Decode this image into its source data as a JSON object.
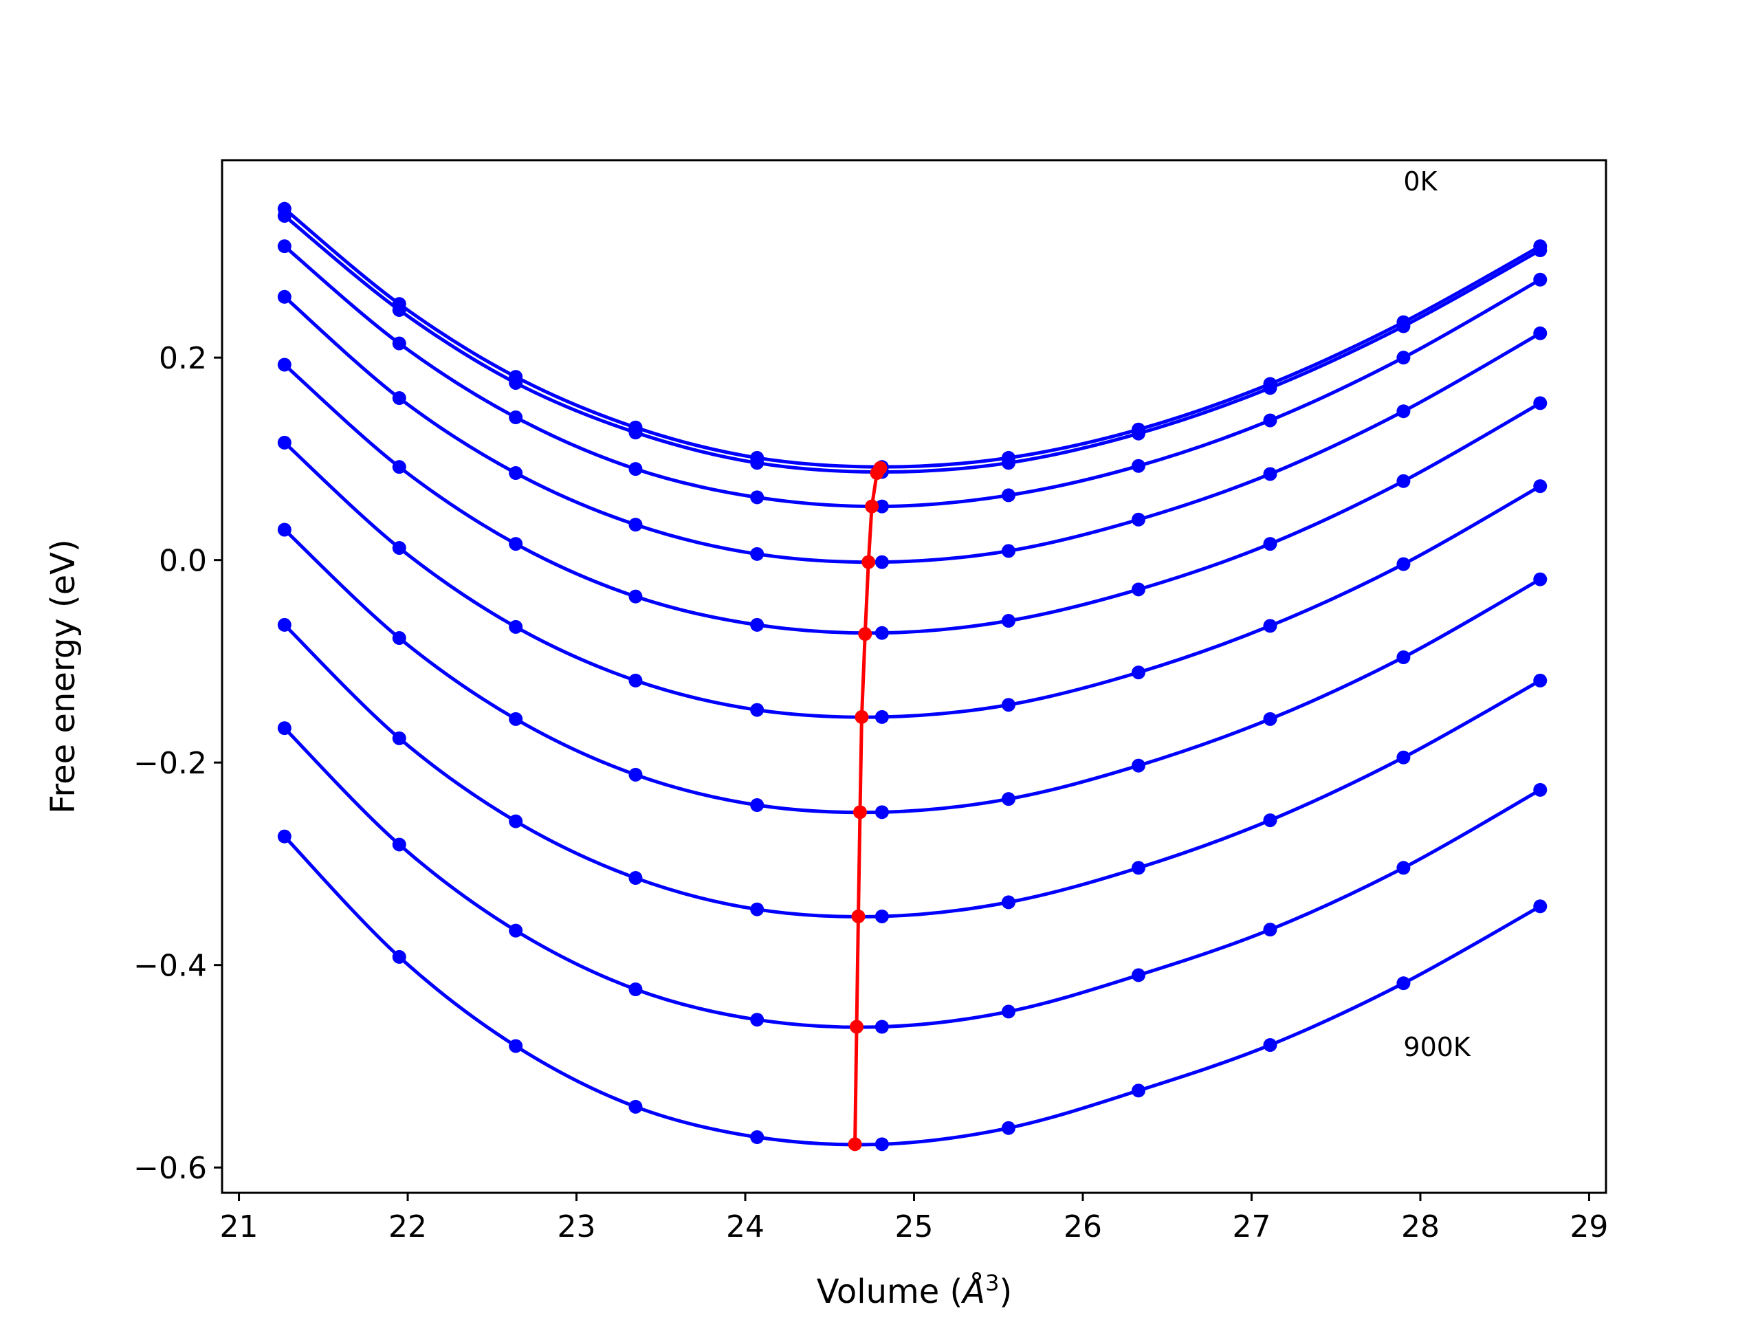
{
  "chart_data": {
    "type": "line",
    "title": "",
    "xlabel": "Volume (",
    "xlabel_symbol": "Å",
    "xlabel_exp": "3",
    "xlabel_close": ")",
    "ylabel": "Free energy (eV)",
    "xlim": [
      20.9,
      29.1
    ],
    "ylim": [
      -0.625,
      0.395
    ],
    "xticks": [
      21,
      22,
      23,
      24,
      25,
      26,
      27,
      28,
      29
    ],
    "xtick_labels": [
      "21",
      "22",
      "23",
      "24",
      "25",
      "26",
      "27",
      "28",
      "29"
    ],
    "yticks": [
      -0.6,
      -0.4,
      -0.2,
      0.0,
      0.2
    ],
    "ytick_labels": [
      "−0.6",
      "−0.4",
      "−0.2",
      "0.0",
      "0.2"
    ],
    "annotations": [
      {
        "text": "0K",
        "x": 27.9,
        "y": 0.365
      },
      {
        "text": "900K",
        "x": 27.9,
        "y": -0.49
      }
    ],
    "point_x": [
      21.27,
      21.95,
      22.64,
      23.35,
      24.07,
      24.81,
      25.56,
      26.33,
      27.11,
      27.9,
      28.71
    ],
    "series": [
      {
        "name": "T1",
        "color": "#0000ff",
        "y": [
          0.347,
          0.253,
          0.181,
          0.131,
          0.101,
          0.092,
          0.101,
          0.129,
          0.174,
          0.235,
          0.31
        ]
      },
      {
        "name": "T2",
        "color": "#0000ff",
        "y": [
          0.34,
          0.247,
          0.175,
          0.126,
          0.096,
          0.087,
          0.096,
          0.125,
          0.17,
          0.231,
          0.306
        ]
      },
      {
        "name": "T3",
        "color": "#0000ff",
        "y": [
          0.31,
          0.214,
          0.141,
          0.09,
          0.062,
          0.053,
          0.064,
          0.093,
          0.138,
          0.2,
          0.277
        ]
      },
      {
        "name": "T4",
        "color": "#0000ff",
        "y": [
          0.26,
          0.16,
          0.086,
          0.035,
          0.006,
          -0.002,
          0.009,
          0.04,
          0.085,
          0.147,
          0.224
        ]
      },
      {
        "name": "T5",
        "color": "#0000ff",
        "y": [
          0.193,
          0.092,
          0.016,
          -0.036,
          -0.064,
          -0.072,
          -0.06,
          -0.029,
          0.016,
          0.078,
          0.155
        ]
      },
      {
        "name": "T6",
        "color": "#0000ff",
        "y": [
          0.116,
          0.012,
          -0.066,
          -0.119,
          -0.148,
          -0.155,
          -0.143,
          -0.111,
          -0.065,
          -0.004,
          0.073
        ]
      },
      {
        "name": "T7",
        "color": "#0000ff",
        "y": [
          0.03,
          -0.077,
          -0.157,
          -0.212,
          -0.242,
          -0.249,
          -0.236,
          -0.203,
          -0.157,
          -0.096,
          -0.019
        ]
      },
      {
        "name": "T8",
        "color": "#0000ff",
        "y": [
          -0.064,
          -0.176,
          -0.258,
          -0.314,
          -0.345,
          -0.352,
          -0.338,
          -0.304,
          -0.257,
          -0.195,
          -0.119
        ]
      },
      {
        "name": "T9",
        "color": "#0000ff",
        "y": [
          -0.166,
          -0.281,
          -0.366,
          -0.424,
          -0.454,
          -0.461,
          -0.446,
          -0.41,
          -0.365,
          -0.304,
          -0.227
        ]
      },
      {
        "name": "T10",
        "color": "#0000ff",
        "y": [
          -0.273,
          -0.392,
          -0.48,
          -0.54,
          -0.57,
          -0.577,
          -0.561,
          -0.524,
          -0.479,
          -0.418,
          -0.342
        ]
      }
    ],
    "minima": {
      "name": "equilibrium volume",
      "color": "#ff0000",
      "x": [
        24.8,
        24.78,
        24.75,
        24.73,
        24.71,
        24.69,
        24.68,
        24.67,
        24.66,
        24.65
      ],
      "y": [
        0.091,
        0.086,
        0.053,
        -0.002,
        -0.073,
        -0.155,
        -0.249,
        -0.352,
        -0.461,
        -0.577
      ]
    }
  }
}
